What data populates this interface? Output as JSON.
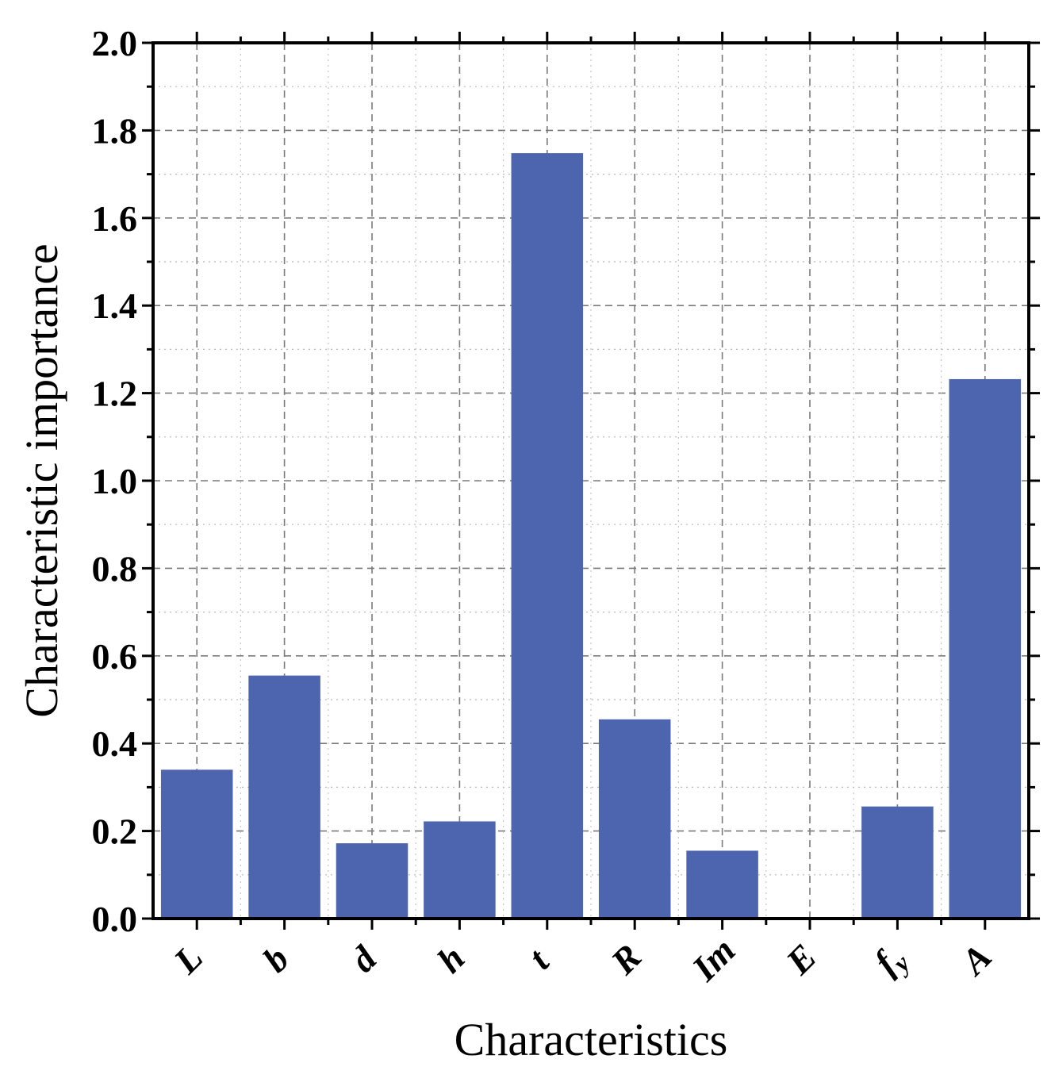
{
  "chart_data": {
    "type": "bar",
    "title": "",
    "xlabel": "Characteristics",
    "ylabel": "Characteristic importance",
    "categories": [
      {
        "base": "L",
        "sub": ""
      },
      {
        "base": "b",
        "sub": ""
      },
      {
        "base": "d",
        "sub": ""
      },
      {
        "base": "h",
        "sub": ""
      },
      {
        "base": "t",
        "sub": ""
      },
      {
        "base": "R",
        "sub": ""
      },
      {
        "base": "Im",
        "sub": ""
      },
      {
        "base": "E",
        "sub": ""
      },
      {
        "base": "f",
        "sub": "y"
      },
      {
        "base": "A",
        "sub": ""
      }
    ],
    "values": [
      0.34,
      0.555,
      0.172,
      0.222,
      1.748,
      0.455,
      0.155,
      0.0,
      0.256,
      1.232
    ],
    "ylim": [
      0,
      2.0
    ],
    "yticks": [
      "0.0",
      "0.2",
      "0.4",
      "0.6",
      "0.8",
      "1.0",
      "1.2",
      "1.4",
      "1.6",
      "1.8",
      "2.0"
    ],
    "grid": true,
    "bar_color": "#4c65ae"
  }
}
